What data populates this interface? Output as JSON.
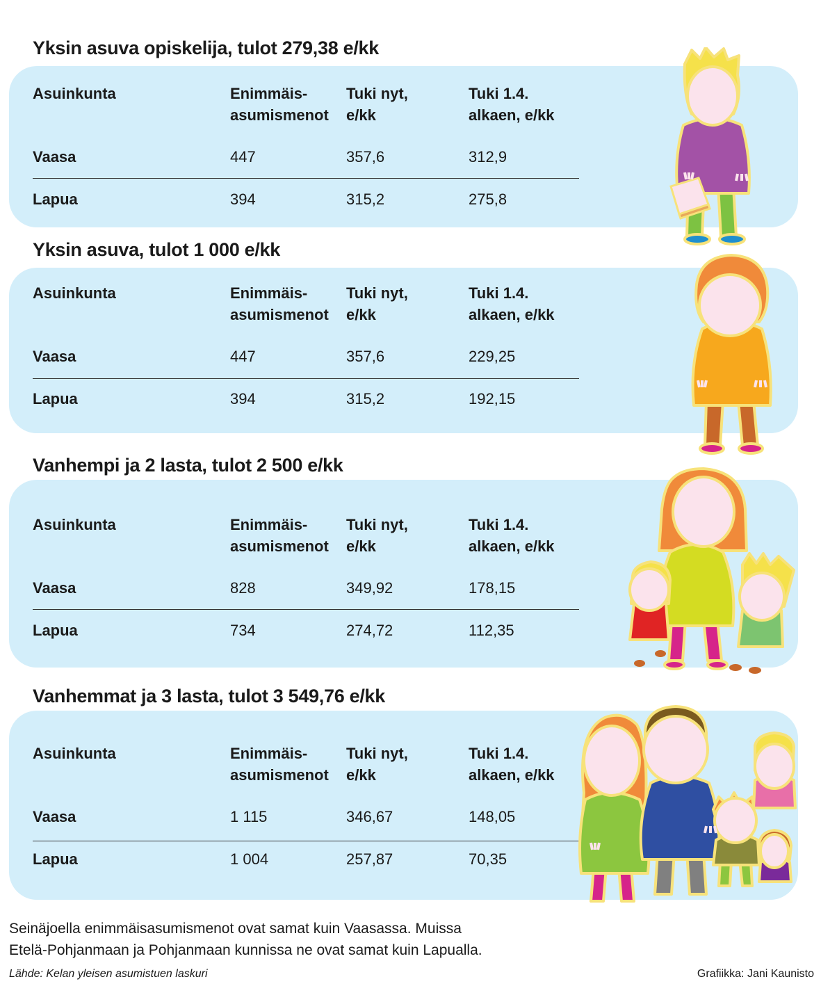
{
  "columns": {
    "municipality": "Asuinkunta",
    "max_costs_line1": "Enimmäis-",
    "max_costs_line2": "asumismenot",
    "support_now_line1": "Tuki nyt,",
    "support_now_line2": "e/kk",
    "support_new_line1": "Tuki 1.4.",
    "support_new_line2": "alkaen, e/kk"
  },
  "sections": [
    {
      "title": "Yksin asuva opiskelija, tulot 279,38 e/kk",
      "rows": [
        {
          "place": "Vaasa",
          "max_costs": "447",
          "support_now": "357,6",
          "support_new": "312,9"
        },
        {
          "place": "Lapua",
          "max_costs": "394",
          "support_now": "315,2",
          "support_new": "275,8"
        }
      ]
    },
    {
      "title": "Yksin asuva, tulot 1 000 e/kk",
      "rows": [
        {
          "place": "Vaasa",
          "max_costs": "447",
          "support_now": "357,6",
          "support_new": "229,25"
        },
        {
          "place": "Lapua",
          "max_costs": "394",
          "support_now": "315,2",
          "support_new": "192,15"
        }
      ]
    },
    {
      "title": "Vanhempi ja 2 lasta, tulot 2 500 e/kk",
      "rows": [
        {
          "place": "Vaasa",
          "max_costs": "828",
          "support_now": "349,92",
          "support_new": "178,15"
        },
        {
          "place": "Lapua",
          "max_costs": "734",
          "support_now": "274,72",
          "support_new": "112,35"
        }
      ]
    },
    {
      "title": "Vanhemmat ja 3 lasta, tulot 3 549,76 e/kk",
      "rows": [
        {
          "place": "Vaasa",
          "max_costs": "1 115",
          "support_now": "346,67",
          "support_new": "148,05"
        },
        {
          "place": "Lapua",
          "max_costs": "1 004",
          "support_now": "257,87",
          "support_new": "70,35"
        }
      ]
    }
  ],
  "footnote_line1": "Seinäjoella enimmäisasumismenot ovat samat kuin Vaasassa. Muissa",
  "footnote_line2": "Etelä-Pohjanmaan ja Pohjanmaan kunnissa ne ovat samat kuin Lapualla.",
  "source": "Lähde: Kelan yleisen asumistuen laskuri",
  "credit": "Grafiikka: Jani Kaunisto",
  "colors": {
    "panel": "#d3eefa",
    "face": "#fbe3ec",
    "outline": "#f7e27a"
  }
}
